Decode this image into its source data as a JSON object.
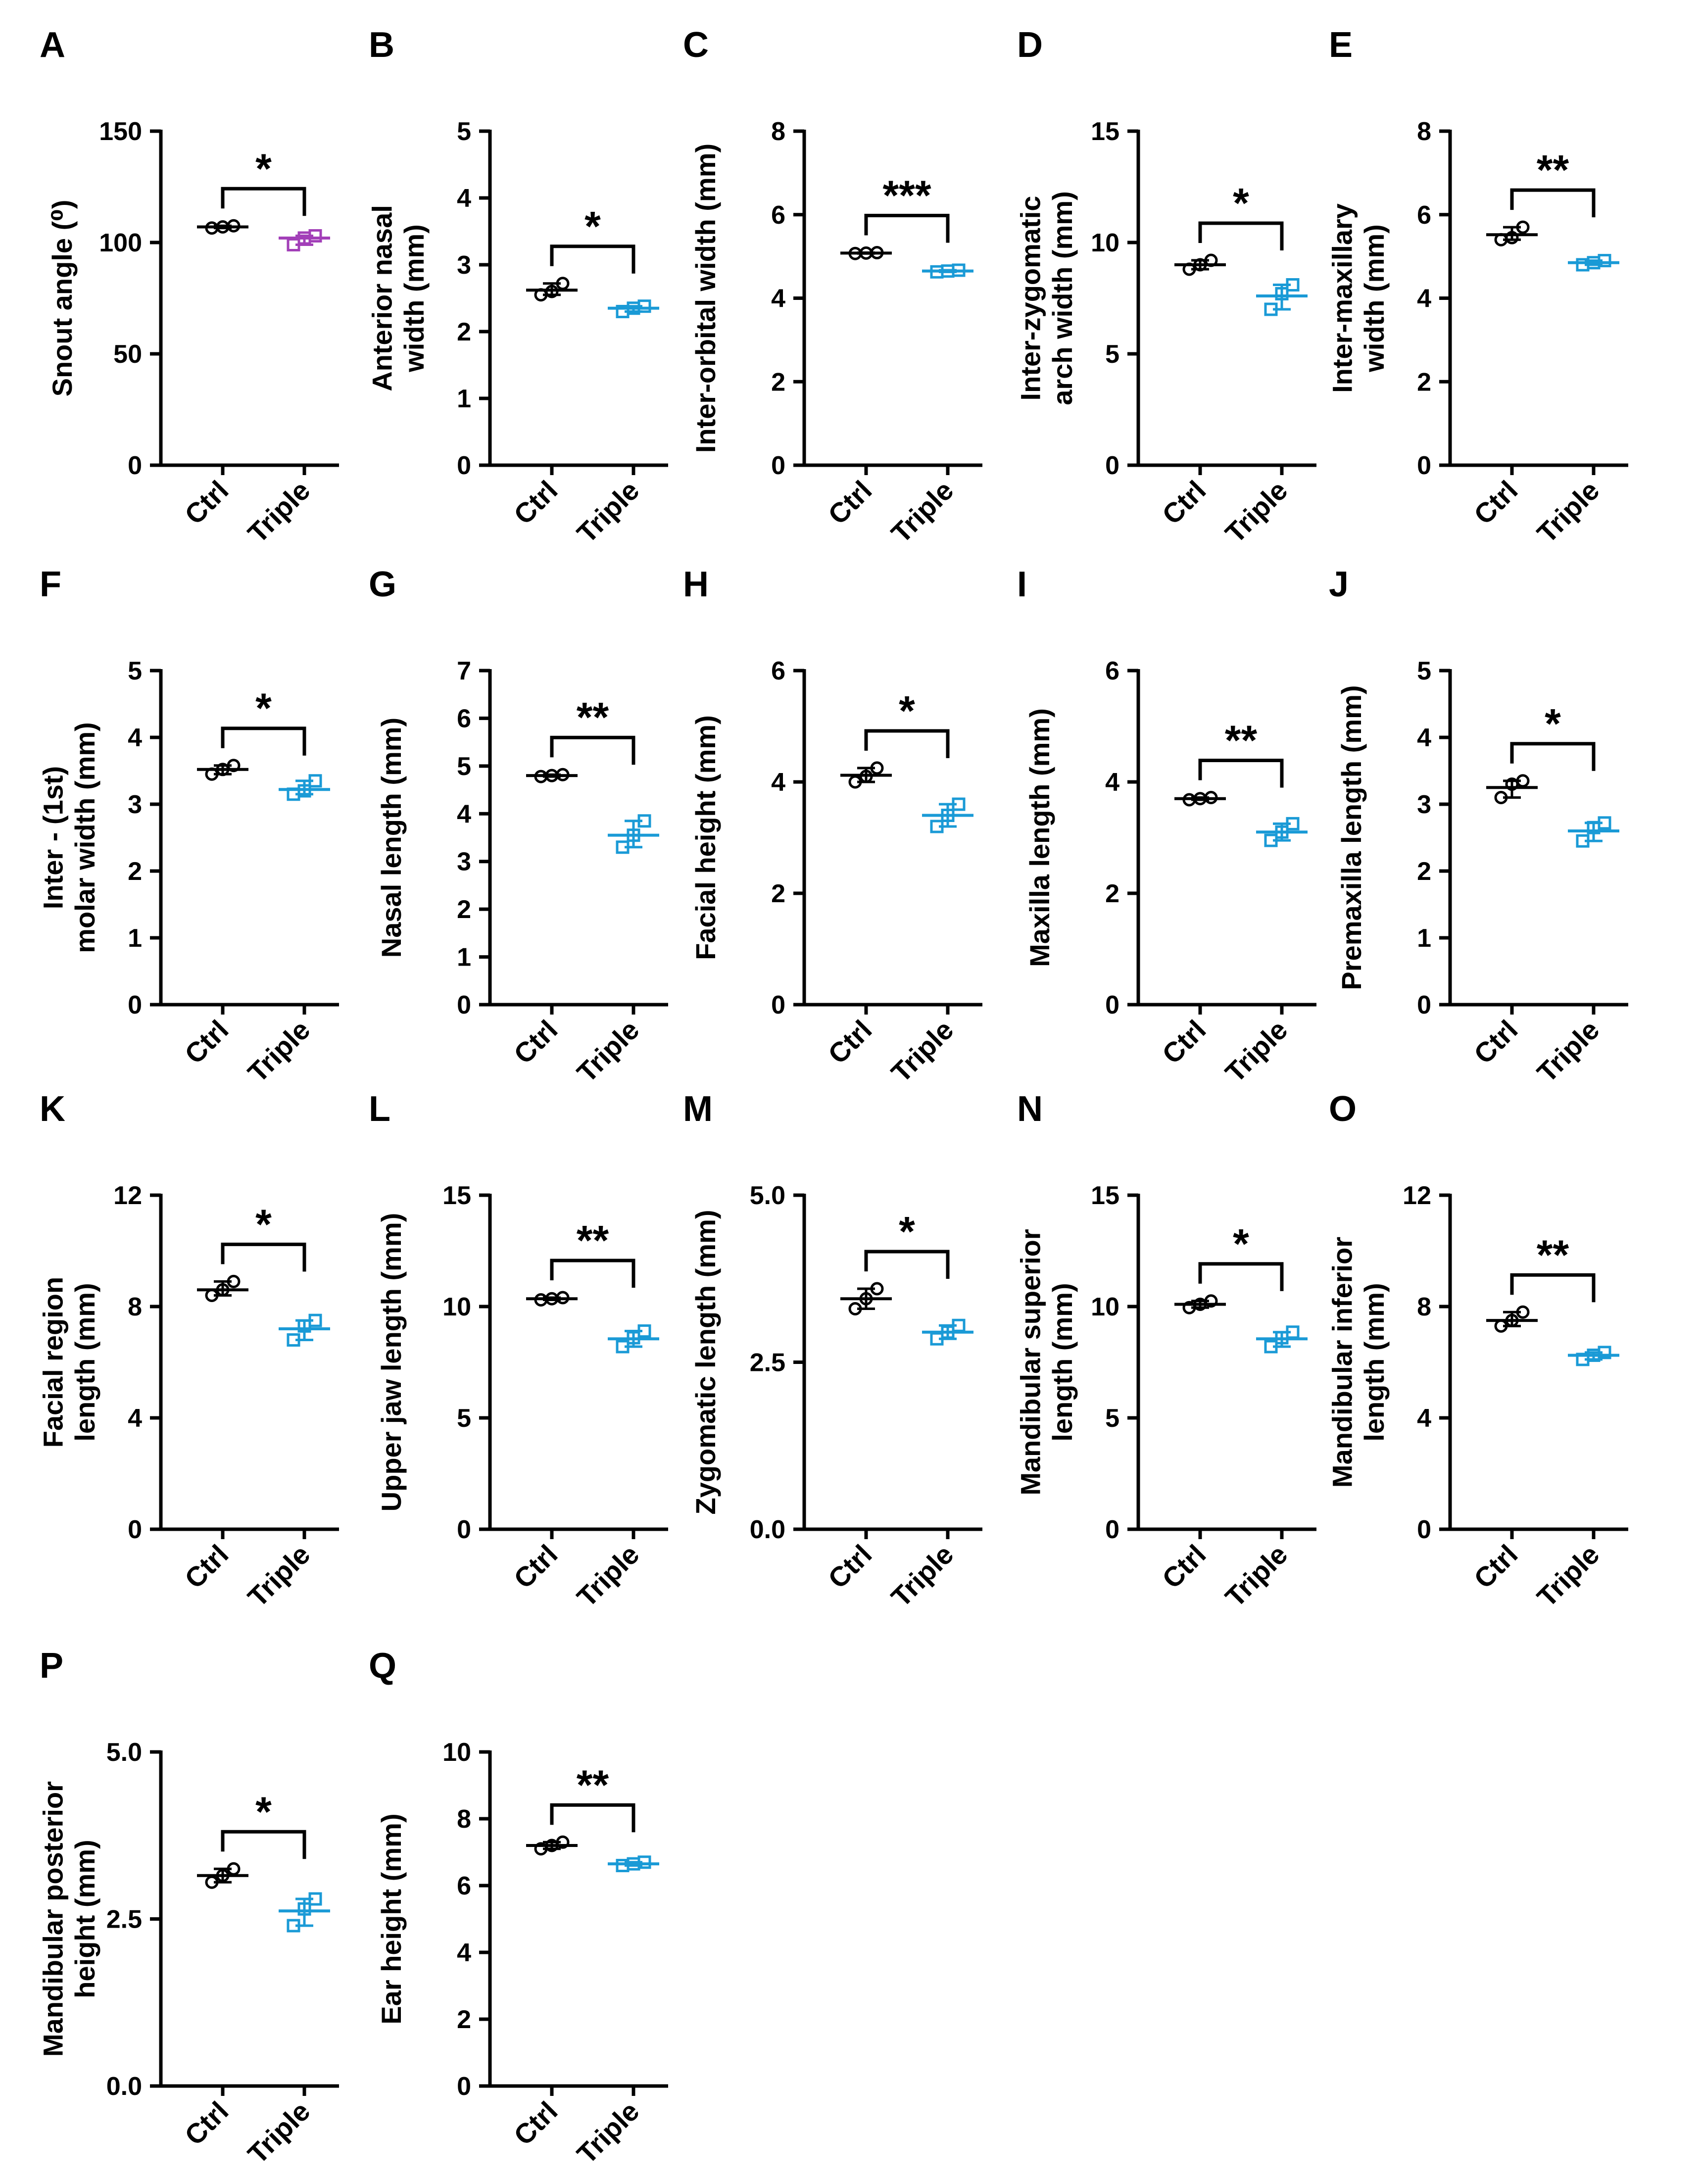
{
  "figure": {
    "colors": {
      "ctrl": "#000000",
      "triple_default": "#1a9ad6",
      "triple_snout": "#a23fb8"
    },
    "categories": [
      "Ctrl",
      "Triple"
    ]
  },
  "chart_data": [
    {
      "type": "scatter",
      "panel": "A",
      "ylabel": "Snout angle (⁰)",
      "ylim": [
        0,
        150
      ],
      "ticks": [
        0,
        50,
        100,
        150
      ],
      "tick_labels": [
        "0",
        "50",
        "100",
        "150"
      ],
      "significance": "*",
      "triple_color": "#a23fb8",
      "series": [
        {
          "name": "Ctrl",
          "mean": 107,
          "points": [
            106.5,
            107,
            107.5
          ]
        },
        {
          "name": "Triple",
          "mean": 102,
          "points": [
            99,
            102,
            103
          ]
        }
      ]
    },
    {
      "type": "scatter",
      "panel": "B",
      "ylabel": "Anterior nasal width (mm)",
      "ylim": [
        0,
        5
      ],
      "ticks": [
        0,
        1,
        2,
        3,
        4,
        5
      ],
      "tick_labels": [
        "0",
        "1",
        "2",
        "3",
        "4",
        "5"
      ],
      "significance": "*",
      "series": [
        {
          "name": "Ctrl",
          "mean": 2.62,
          "points": [
            2.55,
            2.6,
            2.72
          ]
        },
        {
          "name": "Triple",
          "mean": 2.35,
          "points": [
            2.3,
            2.35,
            2.38
          ]
        }
      ]
    },
    {
      "type": "scatter",
      "panel": "C",
      "ylabel": "Inter-orbital width (mm)",
      "ylim": [
        0,
        8
      ],
      "ticks": [
        0,
        2,
        4,
        6,
        8
      ],
      "tick_labels": [
        "0",
        "2",
        "4",
        "6",
        "8"
      ],
      "significance": "***",
      "series": [
        {
          "name": "Ctrl",
          "mean": 5.08,
          "points": [
            5.07,
            5.08,
            5.09
          ]
        },
        {
          "name": "Triple",
          "mean": 4.65,
          "points": [
            4.63,
            4.65,
            4.67
          ]
        }
      ]
    },
    {
      "type": "scatter",
      "panel": "D",
      "ylabel": "Inter-zygomatic arch width (mm)",
      "ylim": [
        0,
        15
      ],
      "ticks": [
        0,
        5,
        10,
        15
      ],
      "tick_labels": [
        "0",
        "5",
        "10",
        "15"
      ],
      "significance": "*",
      "series": [
        {
          "name": "Ctrl",
          "mean": 9.0,
          "points": [
            8.8,
            9.0,
            9.2
          ]
        },
        {
          "name": "Triple",
          "mean": 7.6,
          "points": [
            7.0,
            7.7,
            8.1
          ]
        }
      ]
    },
    {
      "type": "scatter",
      "panel": "E",
      "ylabel": "Inter-maxillary width (mm)",
      "ylim": [
        0,
        8
      ],
      "ticks": [
        0,
        2,
        4,
        6,
        8
      ],
      "tick_labels": [
        "0",
        "2",
        "4",
        "6",
        "8"
      ],
      "significance": "**",
      "series": [
        {
          "name": "Ctrl",
          "mean": 5.52,
          "points": [
            5.4,
            5.45,
            5.7
          ]
        },
        {
          "name": "Triple",
          "mean": 4.85,
          "points": [
            4.8,
            4.85,
            4.9
          ]
        }
      ]
    },
    {
      "type": "scatter",
      "panel": "F",
      "ylabel": "Inter - (1st) molar width (mm)",
      "ylim": [
        0,
        5
      ],
      "ticks": [
        0,
        1,
        2,
        3,
        4,
        5
      ],
      "tick_labels": [
        "0",
        "1",
        "2",
        "3",
        "4",
        "5"
      ],
      "significance": "*",
      "series": [
        {
          "name": "Ctrl",
          "mean": 3.52,
          "points": [
            3.45,
            3.52,
            3.58
          ]
        },
        {
          "name": "Triple",
          "mean": 3.22,
          "points": [
            3.15,
            3.2,
            3.35
          ]
        }
      ]
    },
    {
      "type": "scatter",
      "panel": "G",
      "ylabel": "Nasal length (mm)",
      "ylim": [
        0,
        7
      ],
      "ticks": [
        0,
        1,
        2,
        3,
        4,
        5,
        6,
        7
      ],
      "tick_labels": [
        "0",
        "1",
        "2",
        "3",
        "4",
        "5",
        "6",
        "7"
      ],
      "significance": "**",
      "series": [
        {
          "name": "Ctrl",
          "mean": 4.8,
          "points": [
            4.78,
            4.8,
            4.82
          ]
        },
        {
          "name": "Triple",
          "mean": 3.55,
          "points": [
            3.3,
            3.55,
            3.85
          ]
        }
      ]
    },
    {
      "type": "scatter",
      "panel": "H",
      "ylabel": "Facial height (mm)",
      "ylim": [
        0,
        6
      ],
      "ticks": [
        0,
        2,
        4,
        6
      ],
      "tick_labels": [
        "0",
        "2",
        "4",
        "6"
      ],
      "significance": "*",
      "series": [
        {
          "name": "Ctrl",
          "mean": 4.12,
          "points": [
            4.0,
            4.1,
            4.25
          ]
        },
        {
          "name": "Triple",
          "mean": 3.4,
          "points": [
            3.2,
            3.4,
            3.6
          ]
        }
      ]
    },
    {
      "type": "scatter",
      "panel": "I",
      "ylabel": "Maxilla length (mm)",
      "ylim": [
        0,
        6
      ],
      "ticks": [
        0,
        2,
        4,
        6
      ],
      "tick_labels": [
        "0",
        "2",
        "4",
        "6"
      ],
      "significance": "**",
      "series": [
        {
          "name": "Ctrl",
          "mean": 3.7,
          "points": [
            3.68,
            3.7,
            3.72
          ]
        },
        {
          "name": "Triple",
          "mean": 3.1,
          "points": [
            2.95,
            3.1,
            3.25
          ]
        }
      ]
    },
    {
      "type": "scatter",
      "panel": "J",
      "ylabel": "Premaxilla length (mm)",
      "ylim": [
        0,
        5
      ],
      "ticks": [
        0,
        1,
        2,
        3,
        4,
        5
      ],
      "tick_labels": [
        "0",
        "1",
        "2",
        "3",
        "4",
        "5"
      ],
      "significance": "*",
      "series": [
        {
          "name": "Ctrl",
          "mean": 3.25,
          "points": [
            3.1,
            3.3,
            3.35
          ]
        },
        {
          "name": "Triple",
          "mean": 2.6,
          "points": [
            2.45,
            2.65,
            2.72
          ]
        }
      ]
    },
    {
      "type": "scatter",
      "panel": "K",
      "ylabel": "Facial region length (mm)",
      "ylim": [
        0,
        12
      ],
      "ticks": [
        0,
        4,
        8,
        12
      ],
      "tick_labels": [
        "0",
        "4",
        "8",
        "12"
      ],
      "significance": "*",
      "series": [
        {
          "name": "Ctrl",
          "mean": 8.6,
          "points": [
            8.4,
            8.6,
            8.9
          ]
        },
        {
          "name": "Triple",
          "mean": 7.2,
          "points": [
            6.8,
            7.3,
            7.5
          ]
        }
      ]
    },
    {
      "type": "scatter",
      "panel": "L",
      "ylabel": "Upper jaw length (mm)",
      "ylim": [
        0,
        15
      ],
      "ticks": [
        0,
        5,
        10,
        15
      ],
      "tick_labels": [
        "0",
        "5",
        "10",
        "15"
      ],
      "significance": "**",
      "series": [
        {
          "name": "Ctrl",
          "mean": 10.35,
          "points": [
            10.3,
            10.35,
            10.4
          ]
        },
        {
          "name": "Triple",
          "mean": 8.55,
          "points": [
            8.2,
            8.6,
            8.9
          ]
        }
      ]
    },
    {
      "type": "scatter",
      "panel": "M",
      "ylabel": "Zygomatic length (mm)",
      "ylim": [
        0,
        5
      ],
      "ticks": [
        0,
        2.5,
        5
      ],
      "tick_labels": [
        "0.0",
        "2.5",
        "5.0"
      ],
      "significance": "*",
      "series": [
        {
          "name": "Ctrl",
          "mean": 3.45,
          "points": [
            3.3,
            3.45,
            3.6
          ]
        },
        {
          "name": "Triple",
          "mean": 2.95,
          "points": [
            2.85,
            2.95,
            3.05
          ]
        }
      ]
    },
    {
      "type": "scatter",
      "panel": "N",
      "ylabel": "Mandibular superior length (mm)",
      "ylim": [
        0,
        15
      ],
      "ticks": [
        0,
        5,
        10,
        15
      ],
      "tick_labels": [
        "0",
        "5",
        "10",
        "15"
      ],
      "significance": "*",
      "series": [
        {
          "name": "Ctrl",
          "mean": 10.1,
          "points": [
            9.95,
            10.1,
            10.25
          ]
        },
        {
          "name": "Triple",
          "mean": 8.55,
          "points": [
            8.2,
            8.6,
            8.85
          ]
        }
      ]
    },
    {
      "type": "scatter",
      "panel": "O",
      "ylabel": "Mandibular inferior length (mm)",
      "ylim": [
        0,
        12
      ],
      "ticks": [
        0,
        4,
        8,
        12
      ],
      "tick_labels": [
        "0",
        "4",
        "8",
        "12"
      ],
      "significance": "**",
      "series": [
        {
          "name": "Ctrl",
          "mean": 7.5,
          "points": [
            7.3,
            7.5,
            7.8
          ]
        },
        {
          "name": "Triple",
          "mean": 6.25,
          "points": [
            6.1,
            6.25,
            6.35
          ]
        }
      ]
    },
    {
      "type": "scatter",
      "panel": "P",
      "ylabel": "Mandibular posterior height (mm)",
      "ylim": [
        0,
        5
      ],
      "ticks": [
        0,
        2.5,
        5
      ],
      "tick_labels": [
        "0.0",
        "2.5",
        "5.0"
      ],
      "significance": "*",
      "series": [
        {
          "name": "Ctrl",
          "mean": 3.15,
          "points": [
            3.05,
            3.15,
            3.25
          ]
        },
        {
          "name": "Triple",
          "mean": 2.62,
          "points": [
            2.4,
            2.65,
            2.8
          ]
        }
      ]
    },
    {
      "type": "scatter",
      "panel": "Q",
      "ylabel": "Ear height (mm)",
      "ylim": [
        0,
        10
      ],
      "ticks": [
        0,
        2,
        4,
        6,
        8,
        10
      ],
      "tick_labels": [
        "0",
        "2",
        "4",
        "6",
        "8",
        "10"
      ],
      "significance": "**",
      "series": [
        {
          "name": "Ctrl",
          "mean": 7.2,
          "points": [
            7.1,
            7.2,
            7.3
          ]
        },
        {
          "name": "Triple",
          "mean": 6.65,
          "points": [
            6.6,
            6.65,
            6.7
          ]
        }
      ]
    }
  ]
}
